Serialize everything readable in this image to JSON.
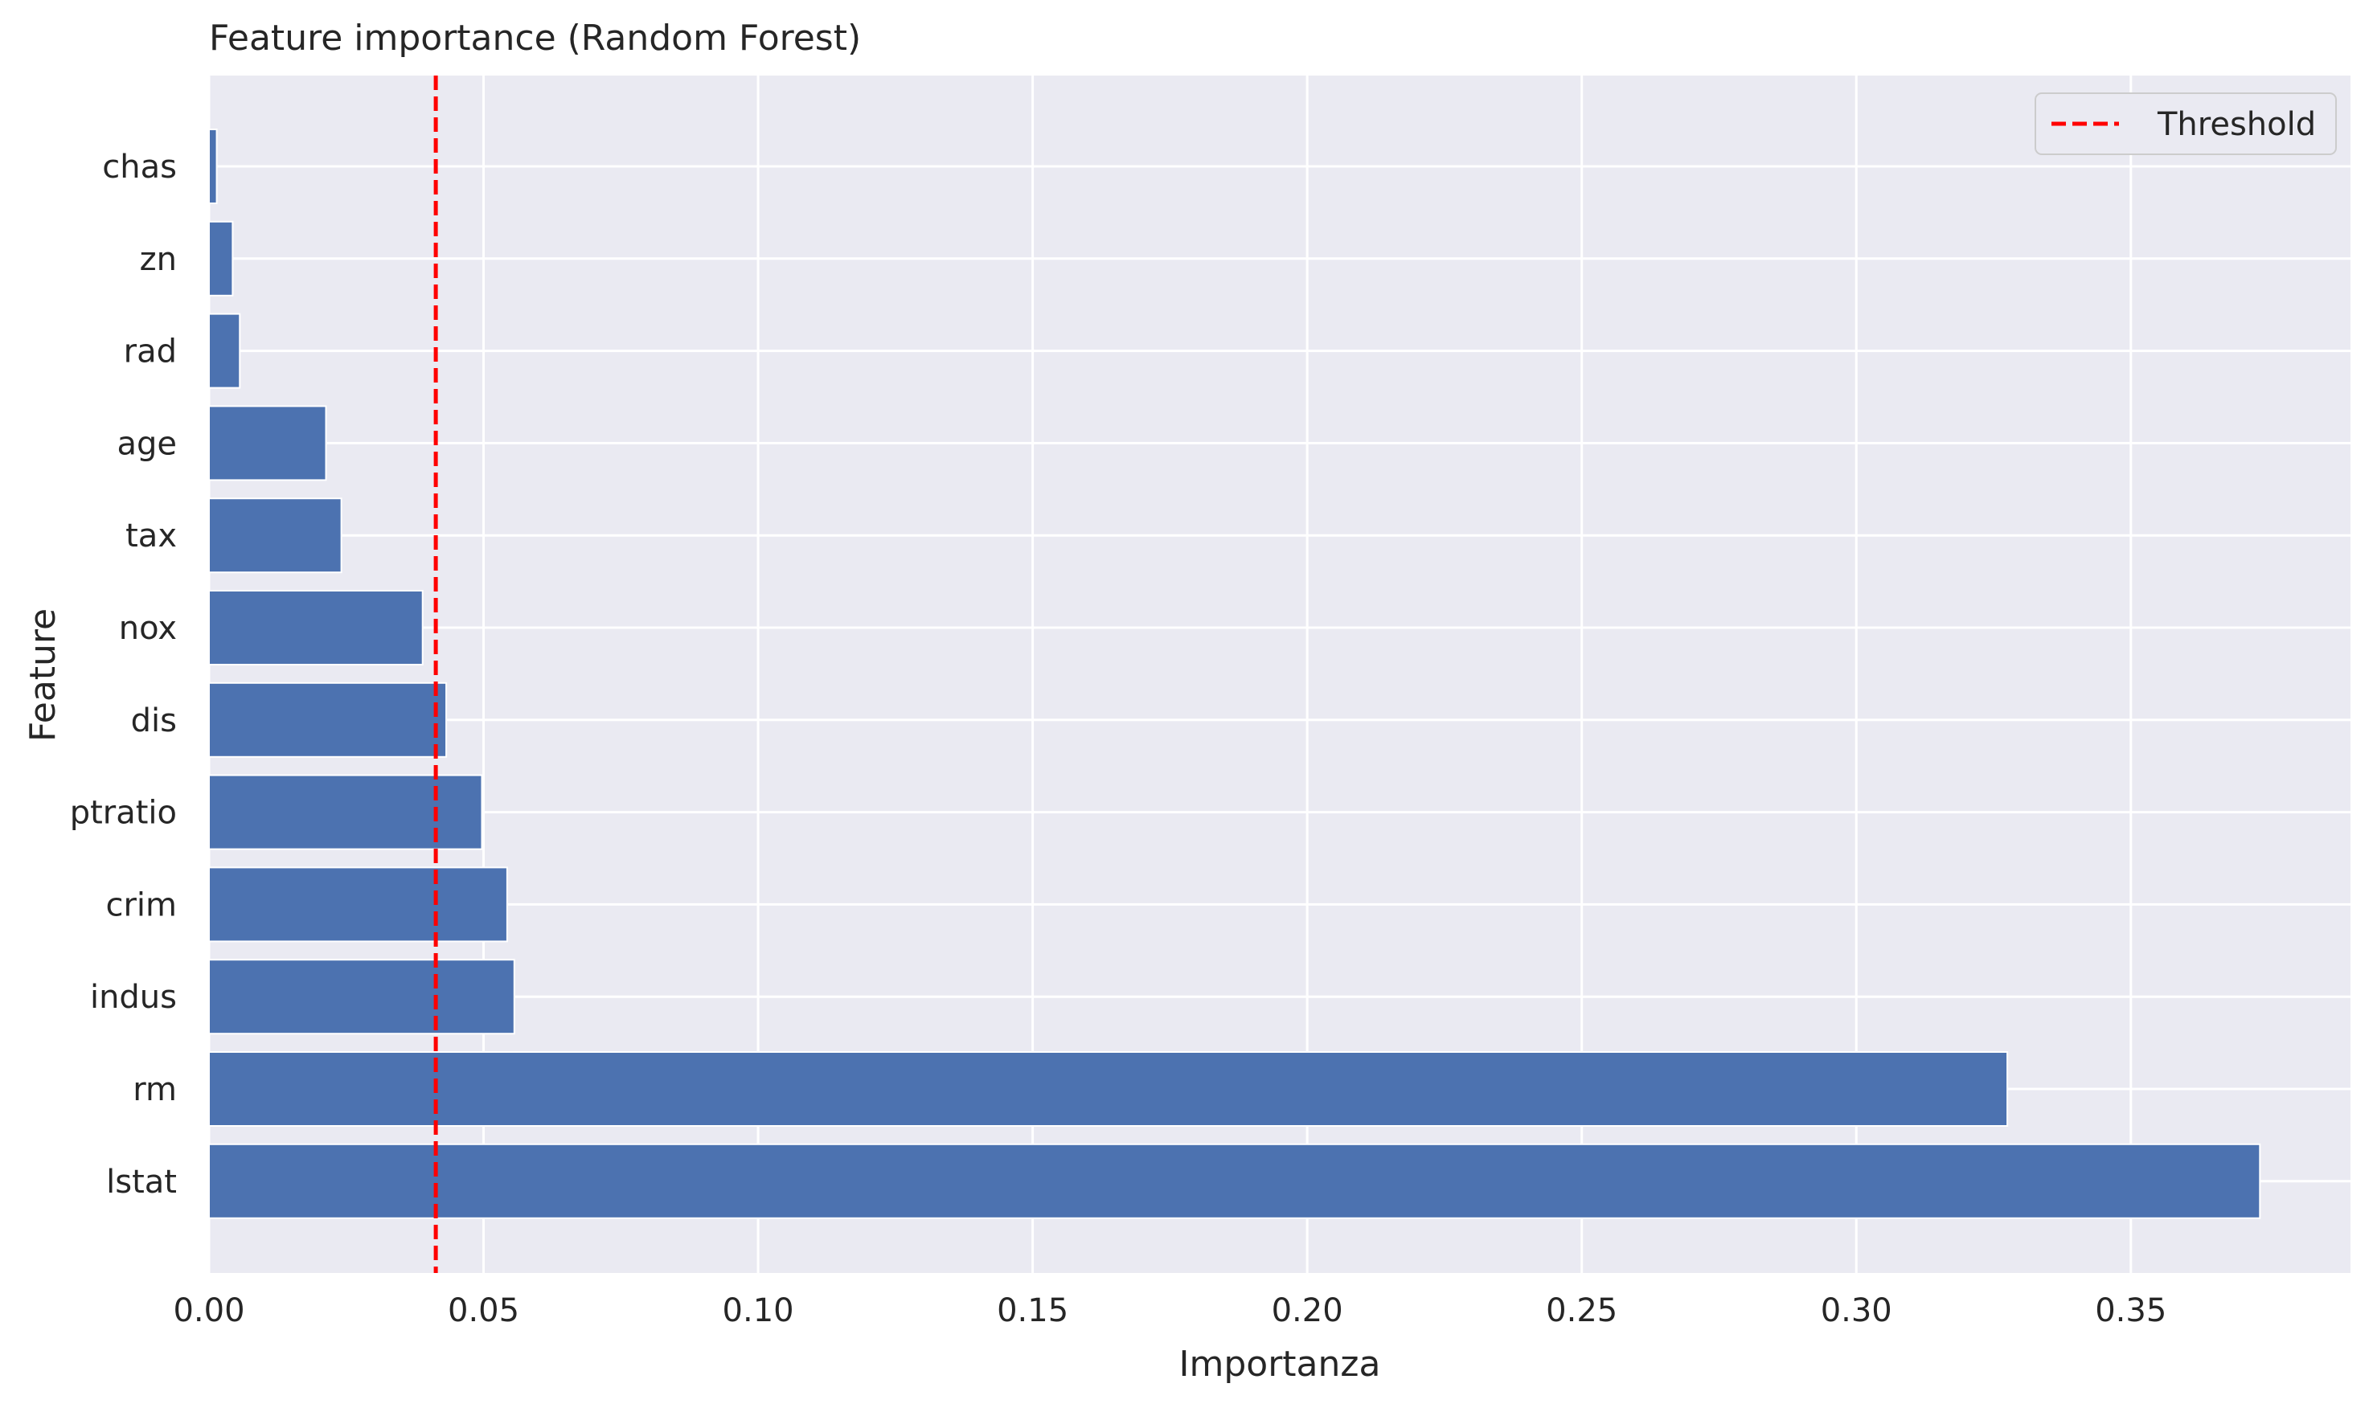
{
  "chart_data": {
    "type": "bar",
    "orientation": "horizontal",
    "title": "Feature importance (Random Forest)",
    "xlabel": "Importanza",
    "ylabel": "Feature",
    "categories": [
      "chas",
      "zn",
      "rad",
      "age",
      "tax",
      "nox",
      "dis",
      "ptratio",
      "crim",
      "indus",
      "rm",
      "lstat"
    ],
    "values": [
      0.0014,
      0.0043,
      0.0056,
      0.0213,
      0.0241,
      0.0389,
      0.0432,
      0.0497,
      0.0543,
      0.0556,
      0.3275,
      0.3735
    ],
    "xlim": [
      0,
      0.39
    ],
    "xticks": [
      0.0,
      0.05,
      0.1,
      0.15,
      0.2,
      0.25,
      0.3,
      0.35
    ],
    "xtick_labels": [
      "0.00",
      "0.05",
      "0.10",
      "0.15",
      "0.20",
      "0.25",
      "0.30",
      "0.35"
    ],
    "threshold": 0.0413,
    "legend": {
      "entries": [
        "Threshold"
      ],
      "position": "top-right"
    },
    "grid": true,
    "colors": {
      "bar": "#4c72b0",
      "threshold": "#ff0000",
      "plot_background": "#eaeaf2",
      "grid": "#ffffff"
    }
  }
}
